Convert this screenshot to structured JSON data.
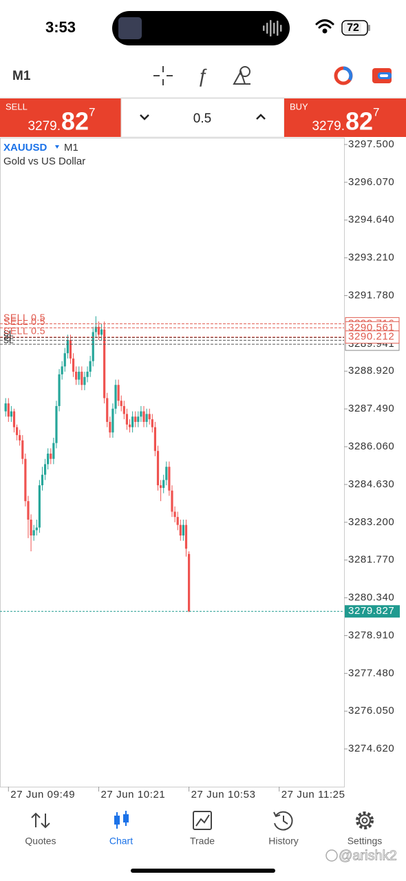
{
  "status_bar": {
    "time": "3:53",
    "battery": "72"
  },
  "toolbar": {
    "timeframe": "M1"
  },
  "trade_panel": {
    "sell": {
      "label": "SELL",
      "price_prefix": "3279.",
      "price_big": "82",
      "price_pip": "7"
    },
    "volume": "0.5",
    "buy": {
      "label": "BUY",
      "price_prefix": "3279.",
      "price_big": "82",
      "price_pip": "7"
    }
  },
  "chart_data": {
    "type": "candlestick",
    "symbol": "XAUUSD",
    "timeframe": "M1",
    "subtitle": "Gold vs US Dollar",
    "up_color": "#26a69a",
    "down_color": "#ef5350",
    "x": [
      "27 Jun 09:48",
      "27 Jun 09:49",
      "27 Jun 09:50",
      "27 Jun 09:51",
      "27 Jun 09:52",
      "27 Jun 09:53",
      "27 Jun 09:54",
      "27 Jun 09:55",
      "27 Jun 09:56",
      "27 Jun 09:57",
      "27 Jun 09:58",
      "27 Jun 09:59",
      "27 Jun 10:00",
      "27 Jun 10:01",
      "27 Jun 10:02",
      "27 Jun 10:03",
      "27 Jun 10:04",
      "27 Jun 10:05",
      "27 Jun 10:06",
      "27 Jun 10:07",
      "27 Jun 10:08",
      "27 Jun 10:09",
      "27 Jun 10:10",
      "27 Jun 10:11",
      "27 Jun 10:12",
      "27 Jun 10:13",
      "27 Jun 10:14",
      "27 Jun 10:15",
      "27 Jun 10:16",
      "27 Jun 10:17",
      "27 Jun 10:18",
      "27 Jun 10:19",
      "27 Jun 10:20",
      "27 Jun 10:21",
      "27 Jun 10:22",
      "27 Jun 10:23",
      "27 Jun 10:24",
      "27 Jun 10:25",
      "27 Jun 10:26",
      "27 Jun 10:27",
      "27 Jun 10:28",
      "27 Jun 10:29",
      "27 Jun 10:30",
      "27 Jun 10:31",
      "27 Jun 10:32",
      "27 Jun 10:33",
      "27 Jun 10:34",
      "27 Jun 10:35",
      "27 Jun 10:36",
      "27 Jun 10:37",
      "27 Jun 10:38",
      "27 Jun 10:39",
      "27 Jun 10:40",
      "27 Jun 10:41",
      "27 Jun 10:42",
      "27 Jun 10:43",
      "27 Jun 10:44",
      "27 Jun 10:45",
      "27 Jun 10:46",
      "27 Jun 10:47",
      "27 Jun 10:48",
      "27 Jun 10:49",
      "27 Jun 10:50",
      "27 Jun 10:51",
      "27 Jun 10:52",
      "27 Jun 10:53"
    ],
    "open": [
      3287.4,
      3287.7,
      3287.2,
      3287.4,
      3286.8,
      3286.5,
      3286.3,
      3285.6,
      3284.0,
      3283.3,
      3282.7,
      3282.9,
      3283.0,
      3284.6,
      3285.0,
      3285.4,
      3285.8,
      3285.6,
      3286.2,
      3287.6,
      3288.8,
      3289.1,
      3289.6,
      3290.1,
      3289.4,
      3288.9,
      3288.6,
      3288.9,
      3288.4,
      3288.7,
      3288.9,
      3289.3,
      3290.4,
      3290.6,
      3290.3,
      3290.5,
      3287.9,
      3287.0,
      3286.6,
      3287.5,
      3288.4,
      3287.8,
      3287.6,
      3287.3,
      3286.9,
      3286.8,
      3287.2,
      3287.0,
      3287.2,
      3287.4,
      3287.0,
      3287.3,
      3287.1,
      3286.8,
      3285.9,
      3284.6,
      3284.5,
      3284.8,
      3285.3,
      3284.4,
      3283.6,
      3283.4,
      3283.1,
      3282.7,
      3283.1,
      3282.0
    ],
    "high": [
      3287.9,
      3287.9,
      3287.6,
      3287.5,
      3286.9,
      3286.7,
      3286.5,
      3285.8,
      3284.2,
      3283.5,
      3283.1,
      3283.3,
      3284.8,
      3285.3,
      3285.6,
      3286.0,
      3286.0,
      3286.4,
      3287.8,
      3289.0,
      3289.3,
      3289.8,
      3290.3,
      3290.3,
      3289.6,
      3289.1,
      3289.1,
      3289.1,
      3288.9,
      3289.1,
      3289.5,
      3290.6,
      3291.0,
      3290.8,
      3290.7,
      3290.8,
      3288.1,
      3287.2,
      3287.7,
      3288.6,
      3288.6,
      3288.0,
      3287.8,
      3287.5,
      3287.1,
      3287.4,
      3287.4,
      3287.4,
      3287.6,
      3287.6,
      3287.5,
      3287.5,
      3287.3,
      3287.0,
      3286.1,
      3284.8,
      3285.0,
      3285.5,
      3285.5,
      3284.6,
      3283.8,
      3283.6,
      3283.3,
      3283.3,
      3283.3,
      3282.1
    ],
    "low": [
      3287.2,
      3287.0,
      3287.0,
      3286.6,
      3286.3,
      3286.1,
      3285.4,
      3283.8,
      3282.6,
      3282.1,
      3282.5,
      3282.7,
      3282.8,
      3284.4,
      3284.8,
      3285.2,
      3285.4,
      3285.4,
      3286.0,
      3287.4,
      3288.6,
      3288.9,
      3289.4,
      3289.2,
      3288.7,
      3288.4,
      3288.4,
      3288.2,
      3288.2,
      3288.5,
      3288.7,
      3289.1,
      3290.2,
      3290.1,
      3290.1,
      3287.7,
      3286.8,
      3286.4,
      3286.4,
      3287.3,
      3287.6,
      3287.4,
      3287.1,
      3286.7,
      3286.6,
      3286.6,
      3286.8,
      3286.8,
      3287.0,
      3286.8,
      3286.8,
      3286.9,
      3286.6,
      3285.7,
      3284.4,
      3284.0,
      3284.3,
      3284.6,
      3284.2,
      3283.4,
      3283.2,
      3282.9,
      3282.5,
      3282.5,
      3281.9,
      3279.8
    ],
    "close": [
      3287.7,
      3287.2,
      3287.4,
      3286.8,
      3286.5,
      3286.3,
      3285.6,
      3284.0,
      3283.3,
      3282.7,
      3282.9,
      3283.0,
      3284.6,
      3285.0,
      3285.4,
      3285.8,
      3285.6,
      3286.2,
      3287.6,
      3288.8,
      3289.1,
      3289.6,
      3290.1,
      3289.4,
      3288.9,
      3288.6,
      3288.9,
      3288.4,
      3288.7,
      3288.9,
      3289.3,
      3290.4,
      3290.6,
      3290.3,
      3290.5,
      3287.9,
      3287.0,
      3286.6,
      3287.5,
      3288.4,
      3287.8,
      3287.6,
      3287.3,
      3286.9,
      3286.8,
      3287.2,
      3287.0,
      3287.2,
      3287.4,
      3287.0,
      3287.3,
      3287.1,
      3286.8,
      3285.9,
      3284.6,
      3284.5,
      3284.8,
      3285.3,
      3284.4,
      3283.6,
      3283.4,
      3283.1,
      3282.7,
      3283.1,
      3282.2,
      3279.827
    ],
    "xlim": [
      "27 Jun 09:46",
      "27 Jun 11:48"
    ],
    "xticks": [
      "27 Jun 09:49",
      "27 Jun 10:21",
      "27 Jun 10:53",
      "27 Jun 11:25"
    ],
    "ylim": [
      3273.19,
      3297.76
    ],
    "yticks": [
      {
        "value": 3297.5,
        "label": "3297.500"
      },
      {
        "value": 3296.07,
        "label": "3296.070"
      },
      {
        "value": 3294.64,
        "label": "3294.640"
      },
      {
        "value": 3293.21,
        "label": "3293.210"
      },
      {
        "value": 3291.78,
        "label": "3291.780"
      },
      {
        "value": 3288.92,
        "label": "3288.920"
      },
      {
        "value": 3287.49,
        "label": "3287.490"
      },
      {
        "value": 3286.06,
        "label": "3286.060"
      },
      {
        "value": 3284.63,
        "label": "3284.630"
      },
      {
        "value": 3283.2,
        "label": "3283.200"
      },
      {
        "value": 3281.77,
        "label": "3281.770"
      },
      {
        "value": 3280.34,
        "label": "3280.340"
      },
      {
        "value": 3278.91,
        "label": "3278.910"
      },
      {
        "value": 3277.48,
        "label": "3277.480"
      },
      {
        "value": 3276.05,
        "label": "3276.050"
      },
      {
        "value": 3274.62,
        "label": "3274.620"
      }
    ],
    "order_lines": [
      {
        "label": "SELL 0.5",
        "value": 3290.716,
        "color": "#e05a4e"
      },
      {
        "label": "SELL 0.5",
        "value": 3290.561,
        "color": "#e05a4e"
      },
      {
        "label": "SELL 0.5",
        "value": 3290.212,
        "color": "#e05a4e"
      }
    ],
    "stop_loss_lines": [
      {
        "label": "SL",
        "value": 3290.19,
        "color": "#555555",
        "axis_label": false
      },
      {
        "label": "SL",
        "value": 3290.09,
        "color": "#555555",
        "axis_label": false
      },
      {
        "label": "SL",
        "value": 3289.941,
        "color": "#555555",
        "axis_label": true
      }
    ],
    "current_price": {
      "value": 3279.827,
      "color": "#1f9a8f"
    }
  },
  "tab_bar": {
    "tabs": [
      "Quotes",
      "Chart",
      "Trade",
      "History",
      "Settings"
    ],
    "active": 1,
    "active_color": "#1b72e8"
  },
  "watermark": "@arishk2"
}
